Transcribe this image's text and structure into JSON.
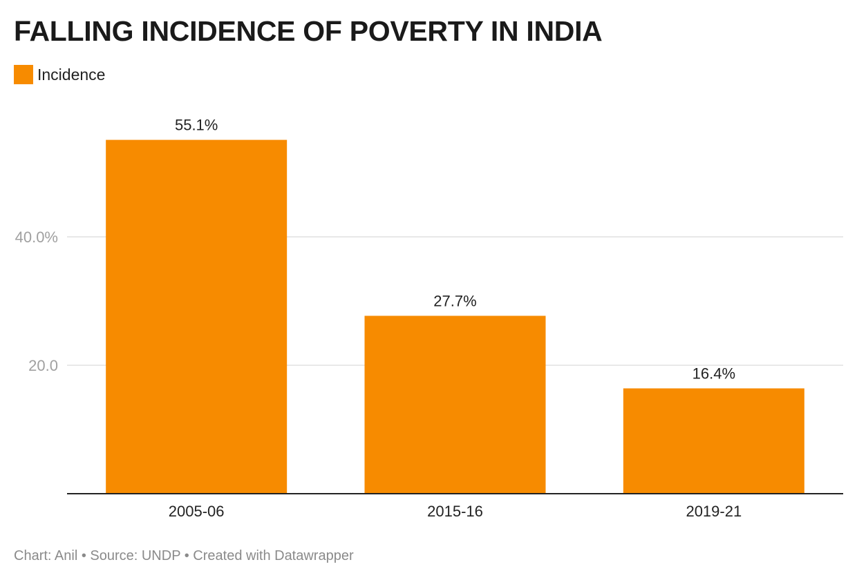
{
  "title": "FALLING INCIDENCE OF POVERTY IN INDIA",
  "legend": {
    "label": "Incidence",
    "color": "#f78b00"
  },
  "footer": "Chart: Anil • Source: UNDP • Created with Datawrapper",
  "chart_data": {
    "type": "bar",
    "title": "FALLING INCIDENCE OF POVERTY IN INDIA",
    "xlabel": "",
    "ylabel": "",
    "categories": [
      "2005-06",
      "2015-16",
      "2019-21"
    ],
    "series": [
      {
        "name": "Incidence",
        "values": [
          55.1,
          27.7,
          16.4
        ],
        "color": "#f78b00"
      }
    ],
    "value_labels": [
      "55.1%",
      "27.7%",
      "16.4%"
    ],
    "yticks": [
      20,
      40
    ],
    "ytick_labels": [
      "20.0",
      "40.0%"
    ],
    "ylim": [
      0,
      60
    ],
    "grid": true
  }
}
